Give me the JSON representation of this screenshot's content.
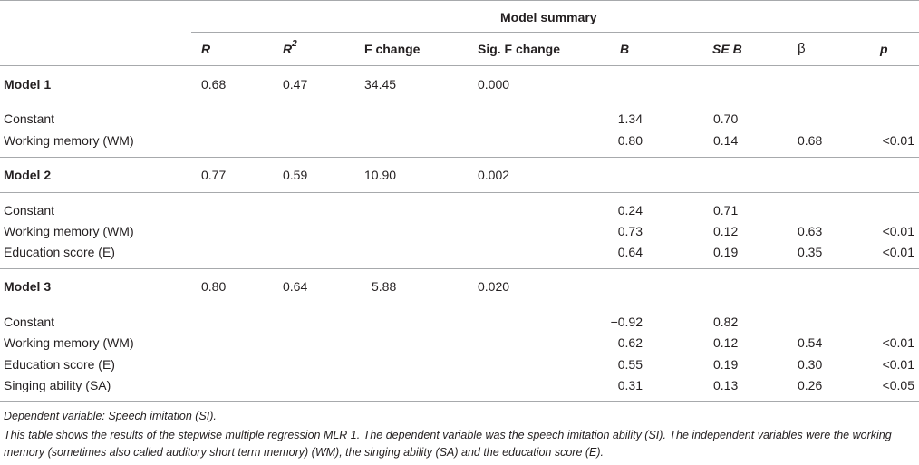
{
  "table": {
    "super_header": "Model summary",
    "columns": {
      "r": "R",
      "r2_base": "R",
      "r2_sup": "2",
      "f_change": "F change",
      "sig_f_change": "Sig. F change",
      "b": "B",
      "se_b": "SE B",
      "beta": "β",
      "p": "p"
    },
    "models": [
      {
        "label": "Model 1",
        "r": "0.68",
        "r2": "0.47",
        "f_change": "34.45",
        "sig_f_change": "0.000",
        "rows": [
          {
            "predictor": "Constant",
            "b": "1.34",
            "se_b": "0.70",
            "beta": "",
            "p": ""
          },
          {
            "predictor": "Working memory (WM)",
            "b": "0.80",
            "se_b": "0.14",
            "beta": "0.68",
            "p": "<0.01"
          }
        ]
      },
      {
        "label": "Model 2",
        "r": "0.77",
        "r2": "0.59",
        "f_change": "10.90",
        "sig_f_change": "0.002",
        "rows": [
          {
            "predictor": "Constant",
            "b": "0.24",
            "se_b": "0.71",
            "beta": "",
            "p": ""
          },
          {
            "predictor": "Working memory (WM)",
            "b": "0.73",
            "se_b": "0.12",
            "beta": "0.63",
            "p": "<0.01"
          },
          {
            "predictor": "Education score (E)",
            "b": "0.64",
            "se_b": "0.19",
            "beta": "0.35",
            "p": "<0.01"
          }
        ]
      },
      {
        "label": "Model 3",
        "r": "0.80",
        "r2": "0.64",
        "f_change": "5.88",
        "sig_f_change": "0.020",
        "rows": [
          {
            "predictor": "Constant",
            "b": "−0.92",
            "se_b": "0.82",
            "beta": "",
            "p": ""
          },
          {
            "predictor": "Working memory (WM)",
            "b": "0.62",
            "se_b": "0.12",
            "beta": "0.54",
            "p": "<0.01"
          },
          {
            "predictor": "Education score (E)",
            "b": "0.55",
            "se_b": "0.19",
            "beta": "0.30",
            "p": "<0.01"
          },
          {
            "predictor": "Singing ability (SA)",
            "b": "0.31",
            "se_b": "0.13",
            "beta": "0.26",
            "p": "<0.05"
          }
        ]
      }
    ]
  },
  "footnotes": {
    "dependent_variable": "Dependent variable: Speech imitation (SI).",
    "description": "This table shows the results of the stepwise multiple regression MLR 1. The dependent variable was the speech imitation ability (SI). The independent variables were the working memory (sometimes also called auditory short term memory) (WM), the singing ability (SA) and the education score (E)."
  }
}
